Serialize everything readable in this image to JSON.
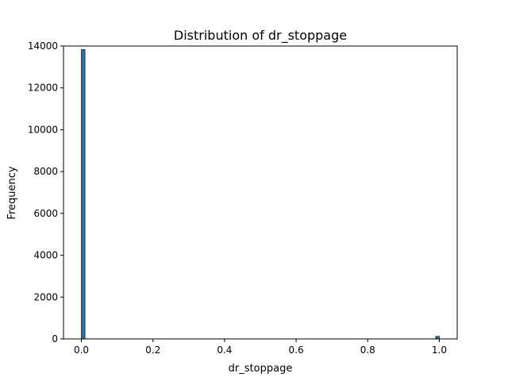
{
  "chart_data": {
    "type": "bar",
    "title": "Distribution of dr_stoppage",
    "xlabel": "dr_stoppage",
    "ylabel": "Frequency",
    "xlim": [
      -0.05,
      1.05
    ],
    "ylim": [
      0,
      14000
    ],
    "grid": false,
    "legend": "none",
    "bar_color": "#1f77b4",
    "edge_color": "#333333",
    "x_ticks": [
      0.0,
      0.2,
      0.4,
      0.6,
      0.8,
      1.0
    ],
    "x_tick_labels": [
      "0.0",
      "0.2",
      "0.4",
      "0.6",
      "0.8",
      "1.0"
    ],
    "y_ticks": [
      0,
      2000,
      4000,
      6000,
      8000,
      10000,
      12000,
      14000
    ],
    "y_tick_labels": [
      "0",
      "2000",
      "4000",
      "6000",
      "8000",
      "10000",
      "12000",
      "14000"
    ],
    "bins": [
      {
        "x0": 0.0,
        "x1": 0.01,
        "count": 13830
      },
      {
        "x0": 0.99,
        "x1": 1.0,
        "count": 120
      }
    ]
  }
}
